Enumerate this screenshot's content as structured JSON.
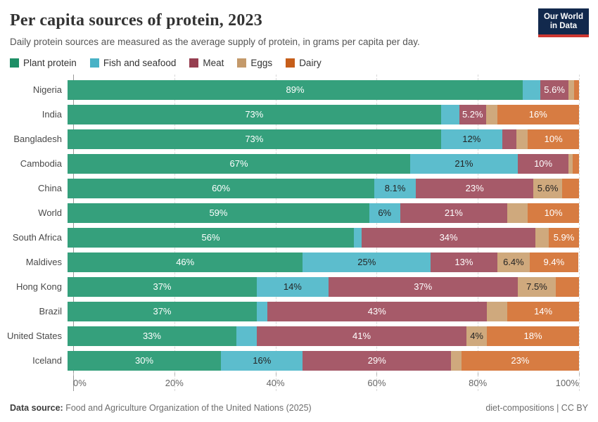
{
  "header": {
    "title": "Per capita sources of protein, 2023",
    "subtitle": "Daily protein sources are measured as the average supply of protein, in grams per capita per day.",
    "logo_line1": "Our World",
    "logo_line2": "in Data",
    "logo_bg": "#12294D",
    "logo_accent": "#CD3731"
  },
  "chart_data": {
    "type": "bar",
    "stacked": true,
    "orientation": "horizontal",
    "grid": "dashed-vertical",
    "legend_position": "top",
    "xlim": [
      0,
      100
    ],
    "categories": [
      "Nigeria",
      "India",
      "Bangladesh",
      "Cambodia",
      "China",
      "World",
      "South Africa",
      "Maldives",
      "Hong Kong",
      "Brazil",
      "United States",
      "Iceland"
    ],
    "series": [
      {
        "name": "Plant protein",
        "legend_color": "#1E8F66",
        "bar_color": "#35A07C",
        "label_color": "#ffffff",
        "values": [
          89,
          73,
          73,
          67,
          60,
          59,
          56,
          46,
          37,
          37,
          33,
          30
        ],
        "labels": [
          "89%",
          "73%",
          "73%",
          "67%",
          "60%",
          "59%",
          "56%",
          "46%",
          "37%",
          "37%",
          "33%",
          "30%"
        ]
      },
      {
        "name": "Fish and seafood",
        "legend_color": "#48B2C6",
        "bar_color": "#5CBDCD",
        "label_color": "#242424",
        "values": [
          3.4,
          3.6,
          12,
          21,
          8.1,
          6,
          1.5,
          25,
          14,
          2,
          4,
          16
        ],
        "labels": [
          null,
          null,
          "12%",
          "21%",
          "8.1%",
          "6%",
          null,
          "25%",
          "14%",
          null,
          null,
          "16%"
        ]
      },
      {
        "name": "Meat",
        "legend_color": "#963E50",
        "bar_color": "#A65A69",
        "label_color": "#ffffff",
        "values": [
          5.6,
          5.2,
          2.7,
          10,
          23,
          21,
          34,
          13,
          37,
          43,
          41,
          29
        ],
        "labels": [
          "5.6%",
          "5.2%",
          null,
          "10%",
          "23%",
          "21%",
          "34%",
          "13%",
          "37%",
          "43%",
          "41%",
          "29%"
        ]
      },
      {
        "name": "Eggs",
        "legend_color": "#C49A6B",
        "bar_color": "#CFA97D",
        "label_color": "#242424",
        "values": [
          1.1,
          2.2,
          2.3,
          0.8,
          5.6,
          4,
          2.6,
          6.4,
          7.5,
          4,
          4,
          2
        ],
        "labels": [
          null,
          null,
          null,
          null,
          "5.6%",
          null,
          null,
          "6.4%",
          "7.5%",
          null,
          "4%",
          null
        ]
      },
      {
        "name": "Dairy",
        "legend_color": "#C65E1A",
        "bar_color": "#D77C42",
        "label_color": "#ffffff",
        "values": [
          0.9,
          16,
          10,
          1.2,
          3.3,
          10,
          5.9,
          9.4,
          4.5,
          14,
          18,
          23
        ],
        "labels": [
          null,
          "16%",
          "10%",
          null,
          null,
          "10%",
          "5.9%",
          "9.4%",
          null,
          "14%",
          "18%",
          "23%"
        ]
      }
    ],
    "x_ticks": [
      {
        "pos": 0,
        "label": "0%"
      },
      {
        "pos": 20,
        "label": "20%"
      },
      {
        "pos": 40,
        "label": "40%"
      },
      {
        "pos": 60,
        "label": "60%"
      },
      {
        "pos": 80,
        "label": "80%"
      },
      {
        "pos": 100,
        "label": "100%"
      }
    ]
  },
  "footer": {
    "source_label": "Data source:",
    "source_text": " Food and Agriculture Organization of the United Nations (2025)",
    "right_text": "diet-compositions | CC BY"
  }
}
